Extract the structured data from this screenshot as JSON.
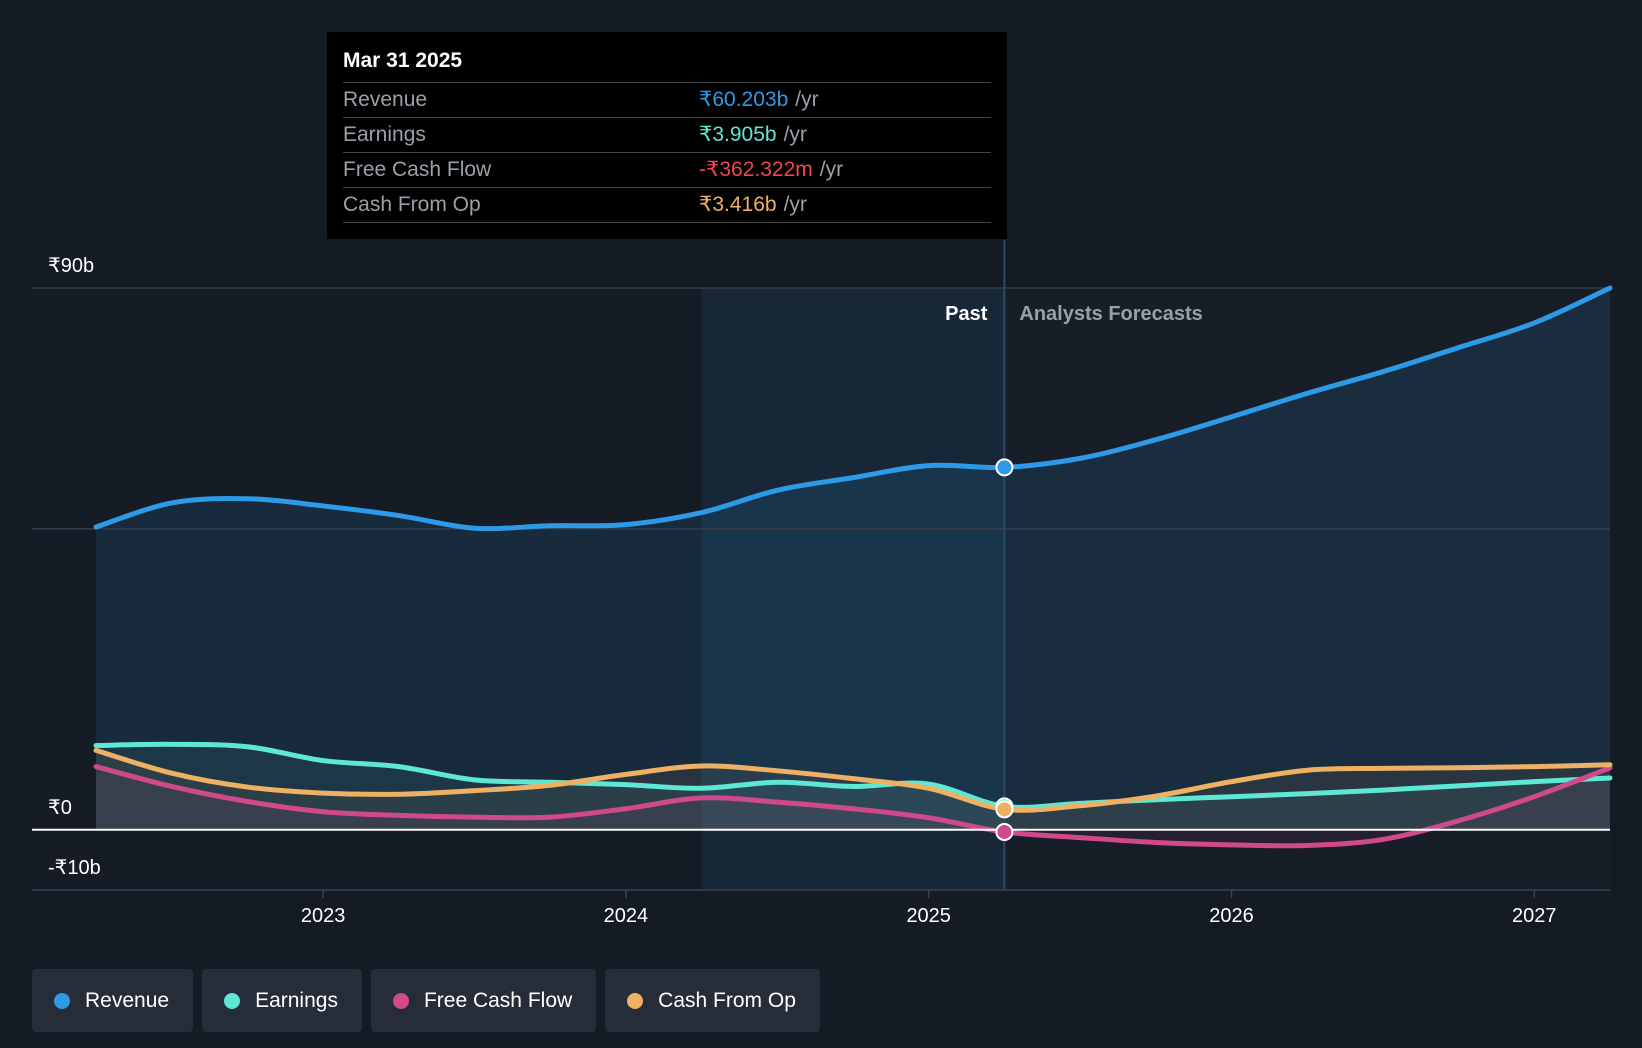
{
  "tooltip": {
    "date": "Mar 31 2025",
    "rows": [
      {
        "label": "Revenue",
        "value": "₹60.203b",
        "unit": "/yr",
        "color": "#2d9ae8"
      },
      {
        "label": "Earnings",
        "value": "₹3.905b",
        "unit": "/yr",
        "color": "#5ee8d4"
      },
      {
        "label": "Free Cash Flow",
        "value": "-₹362.322m",
        "unit": "/yr",
        "color": "#f0464e"
      },
      {
        "label": "Cash From Op",
        "value": "₹3.416b",
        "unit": "/yr",
        "color": "#eeb062"
      }
    ]
  },
  "legend": [
    {
      "label": "Revenue",
      "color": "#2d9ae8"
    },
    {
      "label": "Earnings",
      "color": "#5ee8d4"
    },
    {
      "label": "Free Cash Flow",
      "color": "#d0498a"
    },
    {
      "label": "Cash From Op",
      "color": "#eeb062"
    }
  ],
  "chart_data": {
    "type": "line",
    "unit": "₹b",
    "ylim": [
      -10,
      90
    ],
    "xlim": [
      2022.25,
      2027.25
    ],
    "y_tick_labels": [
      {
        "value": 90,
        "label": "₹90b"
      },
      {
        "value": 0,
        "label": "₹0"
      },
      {
        "value": -10,
        "label": "-₹10b"
      }
    ],
    "x_ticks": [
      2023,
      2024,
      2025,
      2026,
      2027
    ],
    "x_tick_labels": [
      "2023",
      "2024",
      "2025",
      "2026",
      "2027"
    ],
    "past_label": "Past",
    "forecast_label": "Analysts Forecasts",
    "highlight_start": 2024.25,
    "divider_x": 2025.25,
    "hover_x": 2025.25,
    "series": [
      {
        "name": "Revenue",
        "color": "#2d9ae8",
        "points": [
          [
            2022.25,
            50.3
          ],
          [
            2022.5,
            54.3
          ],
          [
            2022.75,
            55.0
          ],
          [
            2023.0,
            53.8
          ],
          [
            2023.25,
            52.2
          ],
          [
            2023.5,
            50.1
          ],
          [
            2023.75,
            50.5
          ],
          [
            2024.0,
            50.7
          ],
          [
            2024.25,
            52.7
          ],
          [
            2024.5,
            56.4
          ],
          [
            2024.75,
            58.5
          ],
          [
            2025.0,
            60.5
          ],
          [
            2025.25,
            60.2
          ],
          [
            2025.5,
            61.7
          ],
          [
            2025.75,
            64.8
          ],
          [
            2026.0,
            68.6
          ],
          [
            2026.25,
            72.5
          ],
          [
            2026.5,
            76.1
          ],
          [
            2026.75,
            80.1
          ],
          [
            2027.0,
            84.2
          ],
          [
            2027.25,
            90.0
          ]
        ]
      },
      {
        "name": "Earnings",
        "color": "#5ee8d4",
        "points": [
          [
            2022.25,
            14.0
          ],
          [
            2022.5,
            14.2
          ],
          [
            2022.75,
            13.8
          ],
          [
            2023.0,
            11.5
          ],
          [
            2023.25,
            10.5
          ],
          [
            2023.5,
            8.3
          ],
          [
            2023.75,
            7.9
          ],
          [
            2024.0,
            7.5
          ],
          [
            2024.25,
            6.9
          ],
          [
            2024.5,
            7.9
          ],
          [
            2024.75,
            7.2
          ],
          [
            2025.0,
            7.6
          ],
          [
            2025.25,
            3.9
          ],
          [
            2025.5,
            4.4
          ],
          [
            2025.75,
            5.0
          ],
          [
            2026.0,
            5.5
          ],
          [
            2026.25,
            6.0
          ],
          [
            2026.5,
            6.6
          ],
          [
            2026.75,
            7.3
          ],
          [
            2027.0,
            8.0
          ],
          [
            2027.25,
            8.6
          ]
        ]
      },
      {
        "name": "Free Cash Flow",
        "color": "#d0498a",
        "points": [
          [
            2022.25,
            10.5
          ],
          [
            2022.5,
            7.2
          ],
          [
            2022.75,
            4.7
          ],
          [
            2023.0,
            3.0
          ],
          [
            2023.25,
            2.4
          ],
          [
            2023.5,
            2.1
          ],
          [
            2023.75,
            2.1
          ],
          [
            2024.0,
            3.5
          ],
          [
            2024.25,
            5.3
          ],
          [
            2024.5,
            4.6
          ],
          [
            2024.75,
            3.5
          ],
          [
            2025.0,
            2.0
          ],
          [
            2025.25,
            -0.36
          ],
          [
            2025.5,
            -1.3
          ],
          [
            2025.75,
            -2.1
          ],
          [
            2026.0,
            -2.5
          ],
          [
            2026.25,
            -2.6
          ],
          [
            2026.5,
            -1.6
          ],
          [
            2026.75,
            1.5
          ],
          [
            2027.0,
            5.5
          ],
          [
            2027.25,
            10.3
          ]
        ]
      },
      {
        "name": "Cash From Op",
        "color": "#eeb062",
        "points": [
          [
            2022.25,
            13.2
          ],
          [
            2022.5,
            9.4
          ],
          [
            2022.75,
            7.1
          ],
          [
            2023.0,
            6.1
          ],
          [
            2023.25,
            5.9
          ],
          [
            2023.5,
            6.5
          ],
          [
            2023.75,
            7.4
          ],
          [
            2024.0,
            9.2
          ],
          [
            2024.25,
            10.6
          ],
          [
            2024.5,
            9.8
          ],
          [
            2024.75,
            8.5
          ],
          [
            2025.0,
            6.9
          ],
          [
            2025.25,
            3.4
          ],
          [
            2025.5,
            4.0
          ],
          [
            2025.75,
            5.6
          ],
          [
            2026.0,
            8.0
          ],
          [
            2026.25,
            9.9
          ],
          [
            2026.5,
            10.2
          ],
          [
            2026.75,
            10.3
          ],
          [
            2027.0,
            10.5
          ],
          [
            2027.25,
            10.8
          ]
        ]
      }
    ]
  }
}
